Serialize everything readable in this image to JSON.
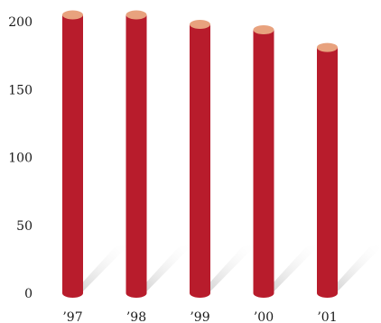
{
  "chart_data": {
    "type": "bar",
    "style": "3d-cylinder",
    "categories": [
      "’97",
      "’98",
      "’99",
      "’00",
      "’01"
    ],
    "values": [
      205,
      205,
      198,
      194,
      181
    ],
    "yticks": [
      0,
      50,
      100,
      150,
      200
    ],
    "ylim": [
      0,
      200
    ],
    "grid": false,
    "legend": "none",
    "colors": {
      "bar_body": "#b81c2c",
      "bar_top": "#e8a27e",
      "bar_bottom": "#a8182a",
      "shadow": "#d0d0d0",
      "text": "#1a1a1a"
    }
  }
}
